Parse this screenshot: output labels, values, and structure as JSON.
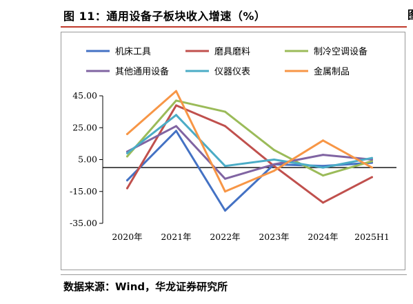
{
  "figure": {
    "title": "图 11：通用设备子板块收入增速（%）",
    "source": "数据来源：Wind，华龙证券研究所"
  },
  "chart_data": {
    "type": "line",
    "categories": [
      "2020年",
      "2021年",
      "2022年",
      "2023年",
      "2024年",
      "2025H1"
    ],
    "y_ticks": [
      "45.00",
      "25.00",
      "5.00",
      "-15.00",
      "-35.00"
    ],
    "ylim": [
      -35,
      45
    ],
    "legend_position": "top",
    "series": [
      {
        "name": "机床工具",
        "color": "#4472c4",
        "values": [
          -8.0,
          23.0,
          -27.0,
          2.0,
          1.0,
          3.0
        ]
      },
      {
        "name": "磨具磨料",
        "color": "#c0504d",
        "values": [
          -13.0,
          39.0,
          26.0,
          1.0,
          -22.0,
          -6.0
        ]
      },
      {
        "name": "制冷空调设备",
        "color": "#9bbb59",
        "values": [
          7.0,
          42.0,
          35.0,
          11.0,
          -5.0,
          4.0
        ]
      },
      {
        "name": "其他通用设备",
        "color": "#8064a2",
        "values": [
          10.0,
          26.0,
          -7.0,
          2.0,
          8.0,
          5.0
        ]
      },
      {
        "name": "仪器仪表",
        "color": "#4bacc6",
        "values": [
          9.0,
          33.0,
          1.0,
          5.0,
          0.0,
          6.0
        ]
      },
      {
        "name": "金属制品",
        "color": "#f79646",
        "values": [
          21.0,
          48.0,
          -15.0,
          -2.0,
          17.0,
          0.0
        ]
      }
    ]
  }
}
